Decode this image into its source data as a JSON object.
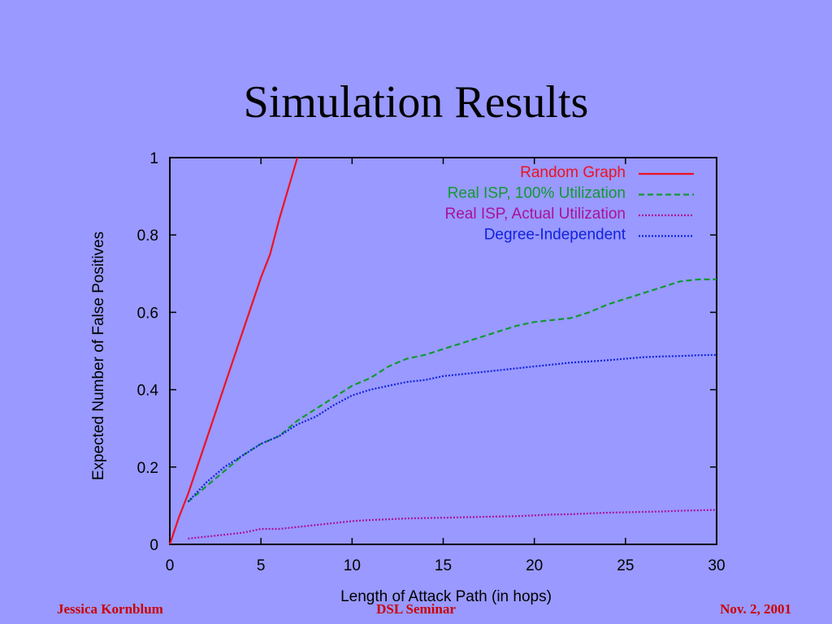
{
  "slide": {
    "title": "Simulation Results",
    "footer": {
      "author": "Jessica Kornblum",
      "event": "DSL Seminar",
      "date": "Nov. 2, 2001"
    }
  },
  "colors": {
    "background": "#9999ff",
    "footer_text": "#cc0000"
  },
  "chart_data": {
    "type": "line",
    "title": "",
    "xlabel": "Length of Attack Path (in hops)",
    "ylabel": "Expected Number of False Positives",
    "xlim": [
      0,
      30
    ],
    "ylim": [
      0,
      1
    ],
    "xticks": [
      0,
      5,
      10,
      15,
      20,
      25,
      30
    ],
    "yticks": [
      0,
      0.2,
      0.4,
      0.6,
      0.8,
      1
    ],
    "grid": false,
    "legend_position": "top-right",
    "series": [
      {
        "name": "Random Graph",
        "color": "#ee1122",
        "style": "solid",
        "x": [
          0,
          0.5,
          1,
          2,
          3,
          4,
          5,
          5.5,
          6,
          7
        ],
        "y": [
          0,
          0.07,
          0.13,
          0.27,
          0.41,
          0.55,
          0.69,
          0.75,
          0.84,
          1.0
        ]
      },
      {
        "name": "Real ISP, 100% Utilization",
        "color": "#119933",
        "style": "dashed",
        "x": [
          1,
          2,
          3,
          4,
          5,
          6,
          7,
          8,
          9,
          10,
          11,
          12,
          13,
          14,
          15,
          16,
          17,
          18,
          19,
          20,
          21,
          22,
          23,
          24,
          25,
          26,
          27,
          28,
          29,
          30
        ],
        "y": [
          0.11,
          0.15,
          0.19,
          0.23,
          0.26,
          0.28,
          0.32,
          0.35,
          0.38,
          0.41,
          0.43,
          0.46,
          0.48,
          0.49,
          0.505,
          0.52,
          0.535,
          0.55,
          0.565,
          0.575,
          0.58,
          0.585,
          0.6,
          0.62,
          0.635,
          0.65,
          0.665,
          0.68,
          0.685,
          0.685
        ]
      },
      {
        "name": "Real ISP, Actual Utilization",
        "color": "#aa1199",
        "style": "dotted",
        "x": [
          1,
          2,
          3,
          4,
          5,
          6,
          7,
          8,
          9,
          10,
          11,
          12,
          13,
          14,
          15,
          16,
          17,
          18,
          19,
          20,
          21,
          22,
          23,
          24,
          25,
          26,
          27,
          28,
          29,
          30
        ],
        "y": [
          0.015,
          0.02,
          0.025,
          0.03,
          0.04,
          0.04,
          0.045,
          0.05,
          0.055,
          0.06,
          0.063,
          0.065,
          0.067,
          0.068,
          0.069,
          0.07,
          0.071,
          0.072,
          0.073,
          0.075,
          0.077,
          0.078,
          0.08,
          0.082,
          0.083,
          0.084,
          0.085,
          0.087,
          0.088,
          0.089
        ]
      },
      {
        "name": "Degree-Independent",
        "color": "#1122dd",
        "style": "dotted",
        "x": [
          1,
          2,
          3,
          4,
          5,
          6,
          7,
          8,
          9,
          10,
          11,
          12,
          13,
          14,
          15,
          16,
          17,
          18,
          19,
          20,
          21,
          22,
          23,
          24,
          25,
          26,
          27,
          28,
          29,
          30
        ],
        "y": [
          0.11,
          0.16,
          0.2,
          0.23,
          0.26,
          0.28,
          0.31,
          0.33,
          0.36,
          0.385,
          0.4,
          0.41,
          0.42,
          0.425,
          0.435,
          0.44,
          0.445,
          0.45,
          0.455,
          0.46,
          0.465,
          0.47,
          0.473,
          0.476,
          0.48,
          0.484,
          0.486,
          0.487,
          0.489,
          0.49
        ]
      }
    ]
  }
}
